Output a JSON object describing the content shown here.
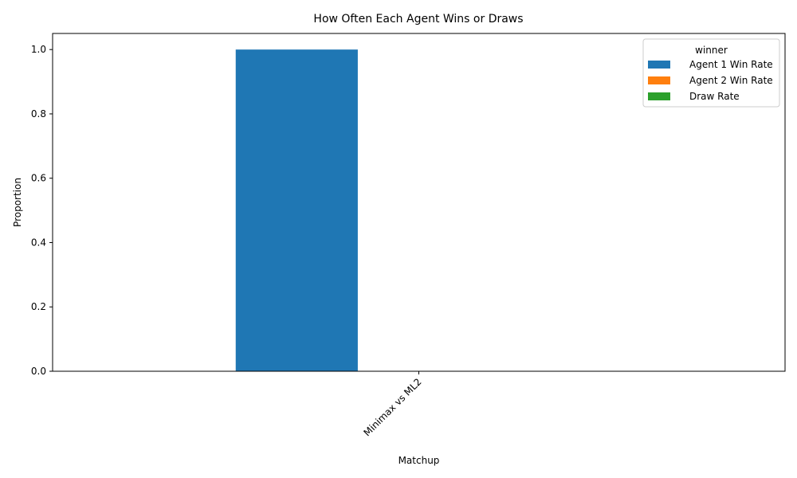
{
  "chart_data": {
    "type": "bar",
    "title": "How Often Each Agent Wins or Draws",
    "xlabel": "Matchup",
    "ylabel": "Proportion",
    "categories": [
      "Minimax vs ML2"
    ],
    "series": [
      {
        "name": "Agent 1 Win Rate",
        "values": [
          1.0
        ],
        "color": "#1f77b4"
      },
      {
        "name": "Agent 2 Win Rate",
        "values": [
          0.0
        ],
        "color": "#ff7f0e"
      },
      {
        "name": "Draw Rate",
        "values": [
          0.0
        ],
        "color": "#2ca02c"
      }
    ],
    "ylim": [
      0,
      1.05
    ],
    "yticks": [
      "0.0",
      "0.2",
      "0.4",
      "0.6",
      "0.8",
      "1.0"
    ],
    "legend": {
      "title": "winner",
      "placement": "top-right"
    },
    "grid": false
  }
}
